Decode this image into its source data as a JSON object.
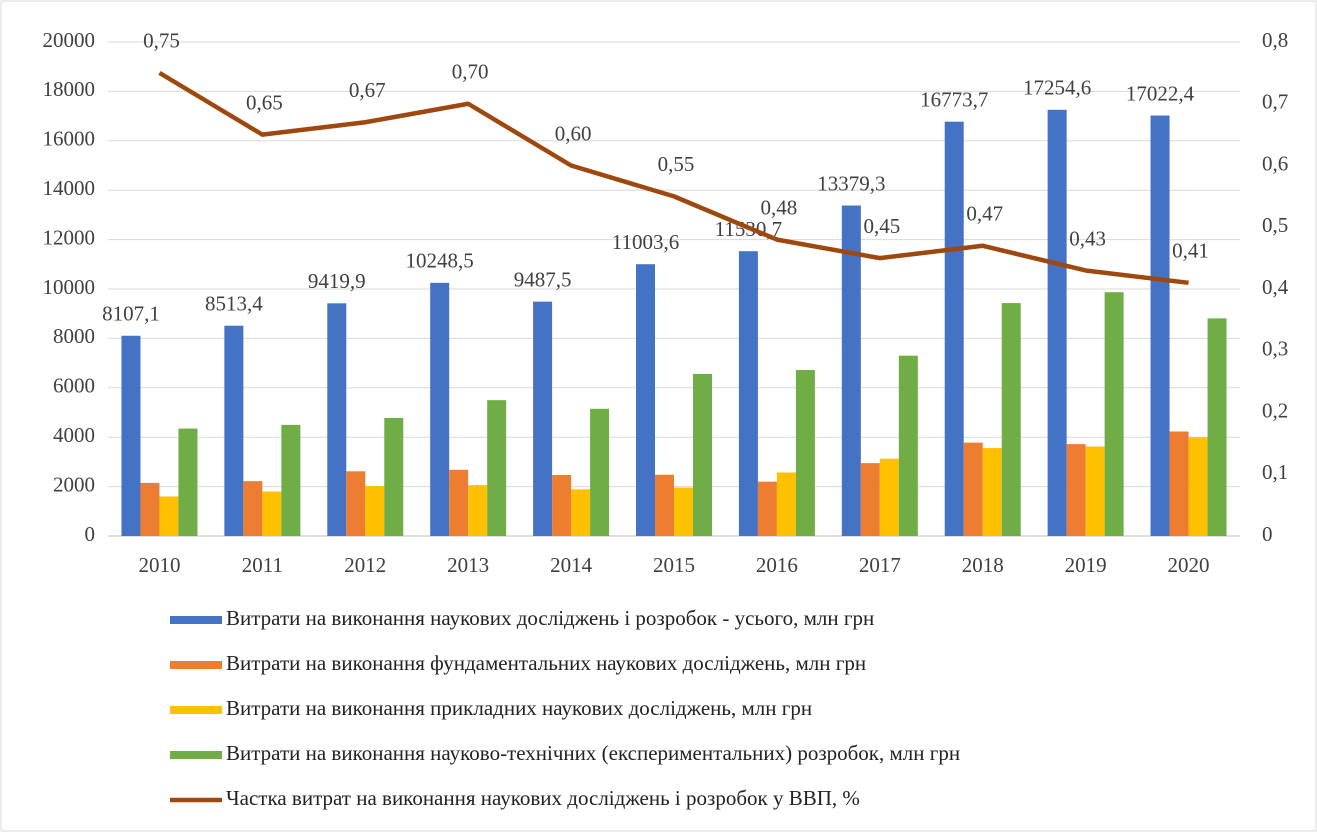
{
  "chart_data": {
    "type": "bar",
    "categories": [
      "2010",
      "2011",
      "2012",
      "2013",
      "2014",
      "2015",
      "2016",
      "2017",
      "2018",
      "2019",
      "2020"
    ],
    "series": [
      {
        "name": "Витрати на виконання наукових досліджень і розробок - усього, млн грн",
        "color": "#4472c4",
        "values": [
          8107.1,
          8513.4,
          9419.9,
          10248.5,
          9487.5,
          11003.6,
          11530.7,
          13379.3,
          16773.7,
          17254.6,
          17022.4
        ],
        "value_labels": [
          "8107,1",
          "8513,4",
          "9419,9",
          "10248,5",
          "9487,5",
          "11003,6",
          "11530,7",
          "13379,3",
          "16773,7",
          "17254,6",
          "17022,4"
        ]
      },
      {
        "name": "Витрати на виконання фундаментальних наукових досліджень, млн грн",
        "color": "#ed7d31",
        "values": [
          2150,
          2220,
          2620,
          2680,
          2470,
          2480,
          2200,
          2950,
          3780,
          3720,
          4230
        ]
      },
      {
        "name": "Витрати на виконання прикладних наукових досліджень, млн грн",
        "color": "#ffc000",
        "values": [
          1600,
          1800,
          2020,
          2060,
          1890,
          1960,
          2570,
          3130,
          3560,
          3620,
          4000
        ]
      },
      {
        "name": "Витрати на виконання науково-технічних (експериментальних) розробок, млн грн",
        "color": "#70ad47",
        "values": [
          4350,
          4500,
          4780,
          5500,
          5150,
          6560,
          6720,
          7300,
          9430,
          9870,
          8810
        ]
      },
      {
        "name": "Частка витрат на виконання наукових досліджень і розробок у ВВП, %",
        "color": "#9e480e",
        "type": "line",
        "axis": "y2",
        "values": [
          0.75,
          0.65,
          0.67,
          0.7,
          0.6,
          0.55,
          0.48,
          0.45,
          0.47,
          0.43,
          0.41
        ],
        "value_labels": [
          "0,75",
          "0,65",
          "0,67",
          "0,70",
          "0,60",
          "0,55",
          "0,48",
          "0,45",
          "0,47",
          "0,43",
          "0,41"
        ]
      }
    ],
    "ylim": [
      0,
      20000
    ],
    "yticks": [
      0,
      2000,
      4000,
      6000,
      8000,
      10000,
      12000,
      14000,
      16000,
      18000,
      20000
    ],
    "y2lim": [
      0,
      0.8
    ],
    "y2ticks": [
      0,
      {
        "value": 0.1,
        "label": "0,1"
      },
      {
        "value": 0.2,
        "label": "0,2"
      },
      {
        "value": 0.3,
        "label": "0,3"
      },
      {
        "value": 0.4,
        "label": "0,4"
      },
      {
        "value": 0.5,
        "label": "0,5"
      },
      {
        "value": 0.6,
        "label": "0,6"
      },
      {
        "value": 0.7,
        "label": "0,7"
      },
      {
        "value": 0.8,
        "label": "0,8"
      }
    ],
    "grid": true
  }
}
